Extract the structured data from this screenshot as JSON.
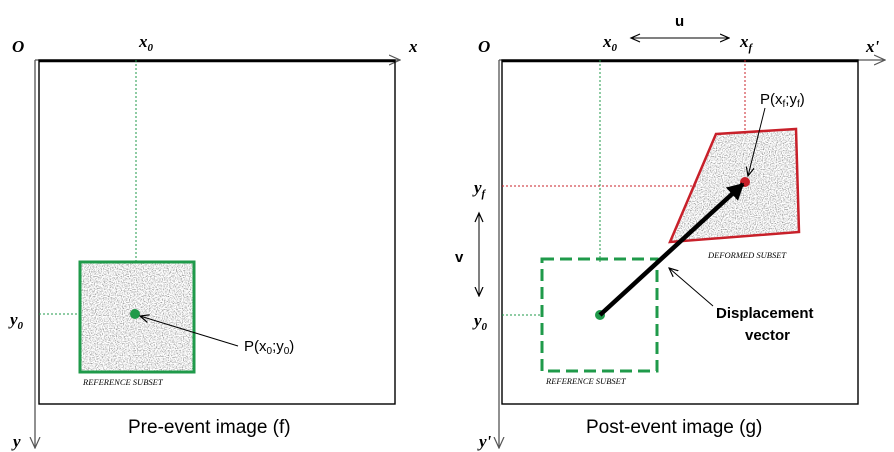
{
  "colors": {
    "axis": "#555555",
    "frame": "#000000",
    "reference_green": "#1f9a4a",
    "deformed_red": "#c8202a",
    "speckle_base": "#8a8a8a",
    "vector": "#000000"
  },
  "left_panel": {
    "origin": "O",
    "x_axis": "x",
    "y_axis": "y",
    "x0": "x",
    "x0_sub": "0",
    "y0": "y",
    "y0_sub": "0",
    "point_label_main": "P(x",
    "point_label_sub_x": "0",
    "point_label_sep": ";y",
    "point_label_sub_y": "0",
    "point_label_end": ")",
    "subset_caption": "REFERENCE SUBSET",
    "caption": "Pre-event image (f)"
  },
  "right_panel": {
    "origin": "O",
    "x_axis": "x'",
    "y_axis": "y'",
    "x0": "x",
    "x0_sub": "0",
    "xf": "x",
    "xf_sub": "f",
    "y0": "y",
    "y0_sub": "0",
    "yf": "y",
    "yf_sub": "f",
    "u_label": "u",
    "v_label": "v",
    "point_label_main": "P(x",
    "point_label_sub_x": "f",
    "point_label_sep": ";y",
    "point_label_sub_y": "f",
    "point_label_end": ")",
    "deformed_caption": "DEFORMED SUBSET",
    "reference_caption": "REFERENCE SUBSET",
    "displacement_line1": "Displacement",
    "displacement_line2": "vector",
    "caption": "Post-event image (g)"
  }
}
